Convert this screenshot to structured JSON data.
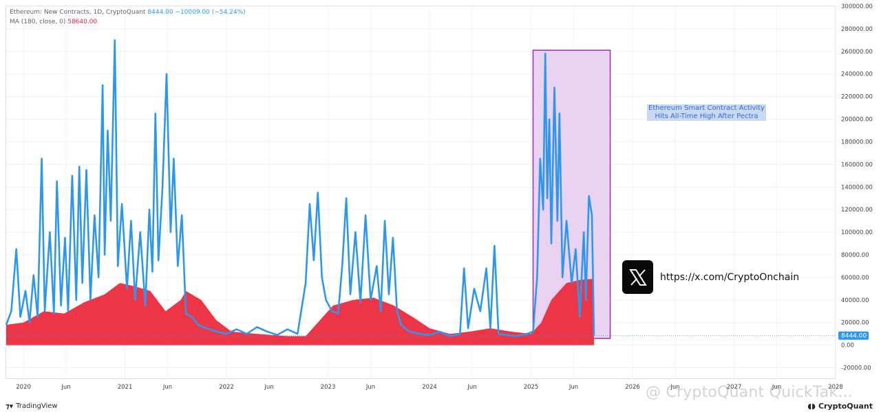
{
  "legend": {
    "line1_name": "Ethereum: New Contracts, 1D, CryptoQuant",
    "line1_value": "8444.00  −10009.00 (−54.24%)",
    "line2_name": "MA (180, close, 0)",
    "line2_value": "58640.00"
  },
  "annotation": {
    "line1": "Ethereum Smart Contract Activity",
    "line2": "Hits All-Time High After Pectra"
  },
  "x_link": {
    "url": "https://x.com/CryptoOnchain",
    "icon": "x-logo-icon"
  },
  "footer": {
    "left_brand": "TradingView",
    "left_icon": "tradingview-logo-icon",
    "right_brand": "CryptoQuant",
    "right_icon": "cryptoquant-logo-icon",
    "watermark": "@ CryptoQuant QuickTak..."
  },
  "chart_data": {
    "type": "area",
    "title": "Ethereum: New Contracts, 1D, CryptoQuant",
    "ylim": [
      -30000,
      300000
    ],
    "y_ticks": [
      "300000.00",
      "280000.00",
      "260000.00",
      "240000.00",
      "220000.00",
      "200000.00",
      "180000.00",
      "160000.00",
      "140000.00",
      "120000.00",
      "100000.00",
      "80000.00",
      "60000.00",
      "40000.00",
      "20000.00",
      "0.00",
      "-20000.00"
    ],
    "y_tick_values": [
      300000,
      280000,
      260000,
      240000,
      220000,
      200000,
      180000,
      160000,
      140000,
      120000,
      100000,
      80000,
      60000,
      40000,
      20000,
      0,
      -20000
    ],
    "x_ticks": [
      {
        "label": "2020",
        "t": 2020.0
      },
      {
        "label": "Jun",
        "t": 2020.42
      },
      {
        "label": "2021",
        "t": 2021.0
      },
      {
        "label": "Jun",
        "t": 2021.42
      },
      {
        "label": "2022",
        "t": 2022.0
      },
      {
        "label": "Jun",
        "t": 2022.42
      },
      {
        "label": "2023",
        "t": 2023.0
      },
      {
        "label": "Jun",
        "t": 2023.42
      },
      {
        "label": "2024",
        "t": 2024.0
      },
      {
        "label": "Jun",
        "t": 2024.42
      },
      {
        "label": "2025",
        "t": 2025.0
      },
      {
        "label": "Jun",
        "t": 2025.42
      },
      {
        "label": "2026",
        "t": 2026.0
      },
      {
        "label": "Jun",
        "t": 2026.42
      },
      {
        "label": "2027",
        "t": 2027.0
      },
      {
        "label": "Jun",
        "t": 2027.42
      },
      {
        "label": "2028",
        "t": 2028.0
      }
    ],
    "xlim": [
      2019.83,
      2028.0
    ],
    "current_value_label": "8444.00",
    "current_value": 8444,
    "highlight_range": {
      "x": [
        2025.02,
        2025.78
      ],
      "y": [
        6000,
        261000
      ]
    },
    "series": [
      {
        "name": "Ethereum: New Contracts",
        "color": "#2d97ee",
        "points": [
          [
            2019.83,
            18000
          ],
          [
            2019.88,
            30000
          ],
          [
            2019.93,
            85000
          ],
          [
            2019.97,
            25000
          ],
          [
            2020.02,
            48000
          ],
          [
            2020.06,
            20000
          ],
          [
            2020.1,
            62000
          ],
          [
            2020.14,
            25000
          ],
          [
            2020.18,
            165000
          ],
          [
            2020.21,
            30000
          ],
          [
            2020.26,
            100000
          ],
          [
            2020.3,
            28000
          ],
          [
            2020.33,
            145000
          ],
          [
            2020.37,
            35000
          ],
          [
            2020.41,
            95000
          ],
          [
            2020.44,
            30000
          ],
          [
            2020.48,
            150000
          ],
          [
            2020.52,
            40000
          ],
          [
            2020.55,
            158000
          ],
          [
            2020.58,
            55000
          ],
          [
            2020.62,
            155000
          ],
          [
            2020.66,
            40000
          ],
          [
            2020.7,
            115000
          ],
          [
            2020.74,
            60000
          ],
          [
            2020.78,
            230000
          ],
          [
            2020.8,
            80000
          ],
          [
            2020.83,
            190000
          ],
          [
            2020.86,
            110000
          ],
          [
            2020.9,
            270000
          ],
          [
            2020.93,
            70000
          ],
          [
            2020.97,
            125000
          ],
          [
            2021.02,
            50000
          ],
          [
            2021.06,
            110000
          ],
          [
            2021.1,
            40000
          ],
          [
            2021.15,
            100000
          ],
          [
            2021.2,
            35000
          ],
          [
            2021.24,
            120000
          ],
          [
            2021.27,
            65000
          ],
          [
            2021.3,
            205000
          ],
          [
            2021.33,
            75000
          ],
          [
            2021.37,
            140000
          ],
          [
            2021.41,
            240000
          ],
          [
            2021.45,
            100000
          ],
          [
            2021.48,
            165000
          ],
          [
            2021.52,
            70000
          ],
          [
            2021.56,
            115000
          ],
          [
            2021.6,
            28000
          ],
          [
            2021.66,
            25000
          ],
          [
            2021.72,
            18000
          ],
          [
            2021.8,
            15000
          ],
          [
            2021.9,
            12000
          ],
          [
            2022.0,
            10000
          ],
          [
            2022.1,
            14000
          ],
          [
            2022.2,
            10000
          ],
          [
            2022.3,
            16000
          ],
          [
            2022.4,
            12000
          ],
          [
            2022.5,
            9000
          ],
          [
            2022.6,
            14000
          ],
          [
            2022.7,
            10000
          ],
          [
            2022.78,
            55000
          ],
          [
            2022.82,
            125000
          ],
          [
            2022.86,
            75000
          ],
          [
            2022.9,
            135000
          ],
          [
            2022.94,
            60000
          ],
          [
            2022.98,
            40000
          ],
          [
            2023.04,
            30000
          ],
          [
            2023.1,
            28000
          ],
          [
            2023.14,
            70000
          ],
          [
            2023.18,
            130000
          ],
          [
            2023.22,
            45000
          ],
          [
            2023.27,
            100000
          ],
          [
            2023.32,
            38000
          ],
          [
            2023.37,
            115000
          ],
          [
            2023.42,
            40000
          ],
          [
            2023.48,
            70000
          ],
          [
            2023.52,
            30000
          ],
          [
            2023.56,
            110000
          ],
          [
            2023.6,
            45000
          ],
          [
            2023.64,
            95000
          ],
          [
            2023.68,
            30000
          ],
          [
            2023.72,
            18000
          ],
          [
            2023.8,
            12000
          ],
          [
            2023.9,
            10000
          ],
          [
            2024.0,
            9000
          ],
          [
            2024.1,
            12000
          ],
          [
            2024.2,
            8000
          ],
          [
            2024.3,
            10000
          ],
          [
            2024.34,
            68000
          ],
          [
            2024.38,
            15000
          ],
          [
            2024.44,
            50000
          ],
          [
            2024.5,
            30000
          ],
          [
            2024.56,
            68000
          ],
          [
            2024.6,
            15000
          ],
          [
            2024.64,
            88000
          ],
          [
            2024.68,
            10000
          ],
          [
            2024.76,
            9000
          ],
          [
            2024.86,
            8000
          ],
          [
            2024.96,
            10000
          ],
          [
            2025.02,
            12000
          ],
          [
            2025.06,
            60000
          ],
          [
            2025.09,
            165000
          ],
          [
            2025.12,
            120000
          ],
          [
            2025.14,
            258000
          ],
          [
            2025.16,
            130000
          ],
          [
            2025.18,
            200000
          ],
          [
            2025.2,
            90000
          ],
          [
            2025.23,
            228000
          ],
          [
            2025.26,
            110000
          ],
          [
            2025.28,
            205000
          ],
          [
            2025.31,
            60000
          ],
          [
            2025.35,
            110000
          ],
          [
            2025.4,
            55000
          ],
          [
            2025.44,
            85000
          ],
          [
            2025.48,
            25000
          ],
          [
            2025.52,
            100000
          ],
          [
            2025.54,
            40000
          ],
          [
            2025.57,
            132000
          ],
          [
            2025.6,
            115000
          ],
          [
            2025.62,
            8444
          ]
        ]
      },
      {
        "name": "MA (180, close, 0)",
        "color": "#e8233d",
        "points": [
          [
            2019.83,
            18000
          ],
          [
            2020.0,
            20000
          ],
          [
            2020.2,
            30000
          ],
          [
            2020.4,
            28000
          ],
          [
            2020.6,
            38000
          ],
          [
            2020.8,
            45000
          ],
          [
            2020.95,
            55000
          ],
          [
            2021.1,
            52000
          ],
          [
            2021.25,
            48000
          ],
          [
            2021.4,
            30000
          ],
          [
            2021.55,
            40000
          ],
          [
            2021.6,
            48000
          ],
          [
            2021.75,
            40000
          ],
          [
            2021.9,
            22000
          ],
          [
            2022.05,
            12000
          ],
          [
            2022.3,
            10000
          ],
          [
            2022.6,
            8000
          ],
          [
            2022.78,
            8000
          ],
          [
            2022.9,
            20000
          ],
          [
            2023.05,
            35000
          ],
          [
            2023.25,
            40000
          ],
          [
            2023.45,
            42000
          ],
          [
            2023.65,
            35000
          ],
          [
            2023.85,
            24000
          ],
          [
            2024.0,
            15000
          ],
          [
            2024.2,
            10000
          ],
          [
            2024.4,
            12000
          ],
          [
            2024.6,
            15000
          ],
          [
            2024.8,
            12000
          ],
          [
            2025.0,
            10000
          ],
          [
            2025.1,
            20000
          ],
          [
            2025.2,
            40000
          ],
          [
            2025.35,
            55000
          ],
          [
            2025.5,
            58000
          ],
          [
            2025.62,
            58640
          ]
        ]
      }
    ]
  }
}
